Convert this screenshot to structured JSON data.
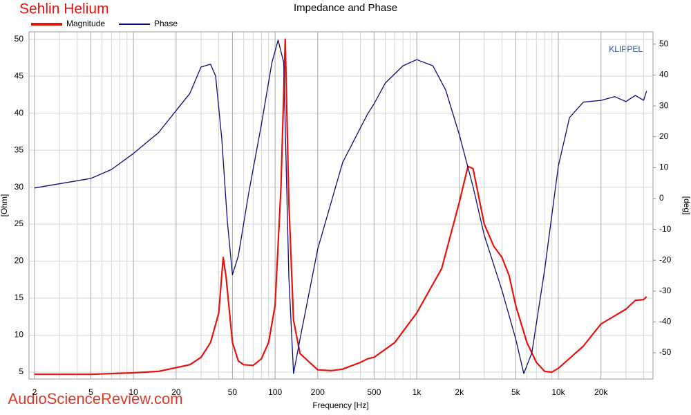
{
  "chart_data": {
    "type": "line",
    "title": "Impedance and Phase",
    "annotations": [
      "Sehlin Helium",
      "KLIPPEL",
      "AudioScienceReview.com"
    ],
    "xlabel": "Frequency [Hz]",
    "ylabel": "[Ohm]",
    "y2label": "[deg]",
    "xscale": "log",
    "grid": true,
    "xlim": [
      1.83,
      46600
    ],
    "ylim": [
      4.06,
      51
    ],
    "y2lim": [
      -58.5,
      54
    ],
    "xticks": [
      2,
      5,
      10,
      20,
      50,
      100,
      200,
      500,
      {
        "value": 1000,
        "label": "1k"
      },
      {
        "value": 2000,
        "label": "2k"
      },
      {
        "value": 5000,
        "label": "5k"
      },
      {
        "value": 10000,
        "label": "10k"
      },
      {
        "value": 20000,
        "label": "20k"
      }
    ],
    "xminorticks": [
      3,
      4,
      6,
      7,
      8,
      9,
      30,
      40,
      60,
      70,
      80,
      90,
      300,
      400,
      600,
      700,
      800,
      900,
      3000,
      4000,
      6000,
      7000,
      8000,
      9000,
      30000,
      40000
    ],
    "yticks": [
      5,
      10,
      15,
      20,
      25,
      30,
      35,
      40,
      45,
      50
    ],
    "y2ticks": [
      -50,
      -40,
      -30,
      -20,
      -10,
      0,
      10,
      20,
      30,
      40,
      50
    ],
    "series": [
      {
        "name": "Magnitude",
        "color": "#e8120c",
        "x": [
          2,
          5,
          10,
          15,
          20,
          25,
          30,
          35,
          40,
          43,
          45,
          50,
          55,
          60,
          70,
          80,
          90,
          100,
          110,
          118,
          125,
          135,
          150,
          200,
          250,
          300,
          400,
          450,
          500,
          700,
          1000,
          1500,
          2000,
          2300,
          2500,
          3000,
          3500,
          4000,
          4500,
          5000,
          6000,
          7000,
          8000,
          9000,
          10000,
          15000,
          20000,
          30000,
          35000,
          40000,
          42000
        ],
        "values": [
          4.7,
          4.7,
          4.9,
          5.1,
          5.6,
          6.0,
          7.0,
          9.0,
          13,
          20.5,
          18,
          9,
          6.5,
          6.0,
          5.9,
          6.8,
          9,
          14,
          30,
          50,
          28,
          12,
          7.5,
          5.3,
          5.2,
          5.4,
          6.3,
          6.8,
          7.0,
          9,
          13,
          19,
          28,
          32.8,
          32.5,
          25,
          22,
          20.5,
          18,
          14,
          9,
          6.3,
          5.1,
          5,
          5.5,
          8.5,
          11.5,
          13.5,
          14.7,
          14.8,
          15.2
        ]
      },
      {
        "name": "Phase",
        "color": "#0a0a78",
        "axis": "y2",
        "x": [
          2,
          5,
          7,
          10,
          15,
          20,
          25,
          30,
          35,
          38,
          42,
          46,
          50,
          55,
          65,
          80,
          95,
          105,
          115,
          125,
          135,
          150,
          200,
          300,
          450,
          500,
          600,
          800,
          1000,
          1300,
          1600,
          2000,
          2500,
          3000,
          4000,
          5000,
          5700,
          6500,
          8000,
          10000,
          12000,
          15000,
          20000,
          25000,
          30000,
          35000,
          40000,
          42000
        ],
        "values": [
          3.4,
          6.5,
          9.4,
          14.6,
          21.3,
          28.5,
          34,
          42.6,
          43.5,
          39.7,
          19.5,
          -7.4,
          -24.7,
          -18.6,
          1.6,
          24,
          44,
          51.3,
          44,
          -25.3,
          -56.7,
          -45.5,
          -16.4,
          11.7,
          27.4,
          30.7,
          37.4,
          43,
          45,
          43,
          35.2,
          20.6,
          3.8,
          -11.9,
          -29.8,
          -45.5,
          -56.7,
          -50,
          -23.1,
          10.5,
          26.2,
          31.2,
          31.8,
          33,
          31.4,
          33.4,
          31.8,
          34.8
        ]
      }
    ]
  }
}
